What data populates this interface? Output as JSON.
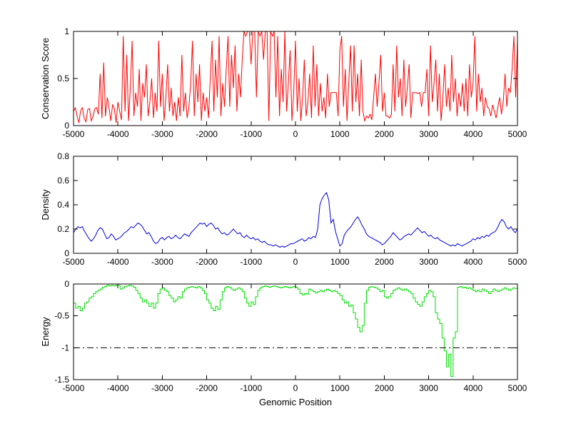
{
  "figure": {
    "background": "#ffffff",
    "axis_color": "#000000"
  },
  "chart_data": {
    "type": "line",
    "title": "",
    "xlabel": "Genomic Position",
    "xlim": [
      -5000,
      5000
    ],
    "xticks": [
      -5000,
      -4000,
      -3000,
      -2000,
      -1000,
      0,
      1000,
      2000,
      3000,
      4000,
      5000
    ],
    "grid": false,
    "legend": "none",
    "subplots": [
      {
        "name": "conservation",
        "ylabel": "Conservation Score",
        "ylim": [
          0,
          1
        ],
        "yticks": [
          0,
          0.5,
          1
        ],
        "color": "#ff0000",
        "interp": "linear",
        "x_start": -5000,
        "x_step": 40,
        "y": [
          0.15,
          0.19,
          0.1,
          0.03,
          0.16,
          0.19,
          0.08,
          0.04,
          0.17,
          0.18,
          0.05,
          0.1,
          0.18,
          0.19,
          0.12,
          0.55,
          0.08,
          0.67,
          0.1,
          0.3,
          0.19,
          0.05,
          0.22,
          0.18,
          0.03,
          0.25,
          0.15,
          0.06,
          0.95,
          0.15,
          0.75,
          0.05,
          0.4,
          0.9,
          0.1,
          0.35,
          0.2,
          0.6,
          0.05,
          0.45,
          0.3,
          0.65,
          0.1,
          0.25,
          0.5,
          0.08,
          0.35,
          0.15,
          0.9,
          0.2,
          0.55,
          0.05,
          0.3,
          0.65,
          0.15,
          0.4,
          0.1,
          0.25,
          0.05,
          0.3,
          0.1,
          0.75,
          0.15,
          0.35,
          0.08,
          0.2,
          0.45,
          0.9,
          0.1,
          0.55,
          0.25,
          0.65,
          0.05,
          0.35,
          0.15,
          0.3,
          0.08,
          0.5,
          0.9,
          0.15,
          0.7,
          0.3,
          0.95,
          0.1,
          0.45,
          0.2,
          0.6,
          0.95,
          0.2,
          0.75,
          0.4,
          0.85,
          0.15,
          0.55,
          0.3,
          0.7,
          1.0,
          0.95,
          1.0,
          1.0,
          0.65,
          1.0,
          1.0,
          0.3,
          1.0,
          0.95,
          1.0,
          0.7,
          1.0,
          1.0,
          0.05,
          1.0,
          0.95,
          1.0,
          0.3,
          0.95,
          0.1,
          0.6,
          0.25,
          1.0,
          0.15,
          0.45,
          0.8,
          0.05,
          0.35,
          0.9,
          0.15,
          0.5,
          0.05,
          0.3,
          0.7,
          0.1,
          0.25,
          0.55,
          0.08,
          0.85,
          0.2,
          0.65,
          0.1,
          0.45,
          0.15,
          0.3,
          0.08,
          0.55,
          0.2,
          0.35,
          0.35,
          0.35,
          0.35,
          0.1,
          0.8,
          0.95,
          0.2,
          0.6,
          0.05,
          0.45,
          0.85,
          0.15,
          0.85,
          0.25,
          0.55,
          0.1,
          0.7,
          0.15,
          0.05,
          0.1,
          0.08,
          0.12,
          0.06,
          0.3,
          0.55,
          0.2,
          0.45,
          0.75,
          0.15,
          0.35,
          0.1,
          0.1,
          0.08,
          0.12,
          0.65,
          0.15,
          0.85,
          0.3,
          0.5,
          0.1,
          0.7,
          0.2,
          0.4,
          0.65,
          0.08,
          0.35,
          0.35,
          0.35,
          0.34,
          0.35,
          0.2,
          0.35,
          0.35,
          0.6,
          0.1,
          0.85,
          0.25,
          0.45,
          0.7,
          0.15,
          0.55,
          0.05,
          0.3,
          0.65,
          0.2,
          0.4,
          0.15,
          0.75,
          0.25,
          0.5,
          0.1,
          0.35,
          0.2,
          0.45,
          0.15,
          0.5,
          0.1,
          0.65,
          0.3,
          0.45,
          0.95,
          0.15,
          0.55,
          0.25,
          0.4,
          0.1,
          0.3,
          0.2,
          0.18,
          0.1,
          0.22,
          0.15,
          0.08,
          0.2,
          0.3,
          0.12,
          0.25,
          0.55,
          0.2,
          0.4,
          0.35,
          0.6,
          0.95,
          0.3,
          0.9
        ]
      },
      {
        "name": "density",
        "ylabel": "Density",
        "ylim": [
          0,
          0.8
        ],
        "yticks": [
          0,
          0.2,
          0.4,
          0.6,
          0.8
        ],
        "color": "#0000dd",
        "interp": "linear",
        "x_start": -5000,
        "x_step": 50,
        "y": [
          0.17,
          0.2,
          0.22,
          0.21,
          0.22,
          0.18,
          0.15,
          0.12,
          0.1,
          0.12,
          0.15,
          0.19,
          0.21,
          0.2,
          0.16,
          0.12,
          0.13,
          0.16,
          0.14,
          0.11,
          0.12,
          0.13,
          0.15,
          0.17,
          0.18,
          0.2,
          0.22,
          0.21,
          0.23,
          0.25,
          0.24,
          0.22,
          0.19,
          0.16,
          0.17,
          0.14,
          0.1,
          0.08,
          0.09,
          0.12,
          0.13,
          0.11,
          0.13,
          0.14,
          0.12,
          0.13,
          0.15,
          0.13,
          0.12,
          0.14,
          0.16,
          0.15,
          0.14,
          0.17,
          0.19,
          0.21,
          0.23,
          0.25,
          0.24,
          0.25,
          0.22,
          0.24,
          0.25,
          0.23,
          0.2,
          0.21,
          0.18,
          0.16,
          0.17,
          0.15,
          0.16,
          0.18,
          0.2,
          0.18,
          0.16,
          0.17,
          0.14,
          0.13,
          0.15,
          0.13,
          0.12,
          0.13,
          0.11,
          0.12,
          0.1,
          0.09,
          0.1,
          0.08,
          0.07,
          0.07,
          0.06,
          0.07,
          0.06,
          0.05,
          0.06,
          0.05,
          0.06,
          0.07,
          0.08,
          0.08,
          0.09,
          0.1,
          0.11,
          0.12,
          0.1,
          0.11,
          0.13,
          0.12,
          0.14,
          0.13,
          0.2,
          0.4,
          0.45,
          0.48,
          0.5,
          0.44,
          0.25,
          0.28,
          0.18,
          0.12,
          0.06,
          0.08,
          0.15,
          0.18,
          0.2,
          0.22,
          0.25,
          0.28,
          0.3,
          0.27,
          0.23,
          0.2,
          0.16,
          0.14,
          0.13,
          0.12,
          0.11,
          0.1,
          0.09,
          0.07,
          0.08,
          0.1,
          0.12,
          0.14,
          0.17,
          0.15,
          0.13,
          0.11,
          0.12,
          0.14,
          0.15,
          0.16,
          0.15,
          0.17,
          0.19,
          0.21,
          0.19,
          0.17,
          0.18,
          0.16,
          0.14,
          0.15,
          0.13,
          0.12,
          0.13,
          0.11,
          0.1,
          0.09,
          0.08,
          0.07,
          0.06,
          0.07,
          0.06,
          0.08,
          0.07,
          0.06,
          0.07,
          0.08,
          0.09,
          0.1,
          0.12,
          0.11,
          0.13,
          0.12,
          0.14,
          0.13,
          0.15,
          0.14,
          0.16,
          0.17,
          0.18,
          0.21,
          0.25,
          0.28,
          0.26,
          0.22,
          0.2,
          0.22,
          0.19,
          0.17,
          0.2
        ]
      },
      {
        "name": "energy",
        "ylabel": "Energy",
        "ylim": [
          -1.5,
          0
        ],
        "yticks": [
          -1.5,
          -1,
          -0.5,
          0
        ],
        "color": "#00dd00",
        "interp": "step",
        "x_start": -5000,
        "x_step": 50,
        "refline": {
          "y": -1,
          "style": "dash-dot",
          "color": "#000000"
        },
        "y": [
          -0.3,
          -0.38,
          -0.35,
          -0.42,
          -0.38,
          -0.3,
          -0.28,
          -0.22,
          -0.2,
          -0.15,
          -0.12,
          -0.1,
          -0.08,
          -0.05,
          -0.04,
          -0.02,
          -0.03,
          -0.02,
          -0.03,
          -0.02,
          -0.02,
          -0.08,
          -0.06,
          -0.04,
          -0.03,
          -0.02,
          -0.03,
          -0.05,
          -0.1,
          -0.15,
          -0.22,
          -0.28,
          -0.25,
          -0.3,
          -0.35,
          -0.3,
          -0.38,
          -0.3,
          -0.15,
          -0.08,
          -0.06,
          -0.1,
          -0.12,
          -0.18,
          -0.22,
          -0.28,
          -0.25,
          -0.2,
          -0.22,
          -0.12,
          -0.08,
          -0.06,
          -0.05,
          -0.04,
          -0.05,
          -0.06,
          -0.04,
          -0.06,
          -0.1,
          -0.15,
          -0.25,
          -0.3,
          -0.38,
          -0.42,
          -0.35,
          -0.4,
          -0.25,
          -0.12,
          -0.06,
          -0.04,
          -0.05,
          -0.08,
          -0.1,
          -0.08,
          -0.06,
          -0.08,
          -0.12,
          -0.22,
          -0.3,
          -0.35,
          -0.28,
          -0.32,
          -0.2,
          -0.1,
          -0.06,
          -0.04,
          -0.03,
          -0.04,
          -0.05,
          -0.04,
          -0.03,
          -0.04,
          -0.05,
          -0.06,
          -0.05,
          -0.04,
          -0.05,
          -0.06,
          -0.05,
          -0.04,
          -0.05,
          -0.08,
          -0.15,
          -0.17,
          -0.15,
          -0.16,
          -0.08,
          -0.1,
          -0.12,
          -0.14,
          -0.12,
          -0.1,
          -0.12,
          -0.1,
          -0.08,
          -0.1,
          -0.12,
          -0.1,
          -0.12,
          -0.15,
          -0.18,
          -0.25,
          -0.3,
          -0.28,
          -0.35,
          -0.33,
          -0.45,
          -0.55,
          -0.68,
          -0.75,
          -0.65,
          -0.3,
          -0.1,
          -0.05,
          -0.04,
          -0.05,
          -0.06,
          -0.08,
          -0.12,
          -0.1,
          -0.2,
          -0.22,
          -0.2,
          -0.15,
          -0.1,
          -0.08,
          -0.06,
          -0.08,
          -0.1,
          -0.08,
          -0.1,
          -0.12,
          -0.15,
          -0.22,
          -0.28,
          -0.32,
          -0.35,
          -0.28,
          -0.2,
          -0.15,
          -0.1,
          -0.12,
          -0.2,
          -0.45,
          -0.55,
          -0.62,
          -0.85,
          -1.05,
          -1.3,
          -1.1,
          -1.45,
          -0.85,
          -0.75,
          -0.05,
          -0.04,
          -0.06,
          -0.05,
          -0.07,
          -0.06,
          -0.08,
          -0.1,
          -0.12,
          -0.1,
          -0.12,
          -0.08,
          -0.1,
          -0.12,
          -0.15,
          -0.12,
          -0.08,
          -0.1,
          -0.12,
          -0.1,
          -0.08,
          -0.06,
          -0.08,
          -0.1,
          -0.08,
          -0.06,
          -0.07,
          -0.07
        ]
      }
    ]
  }
}
